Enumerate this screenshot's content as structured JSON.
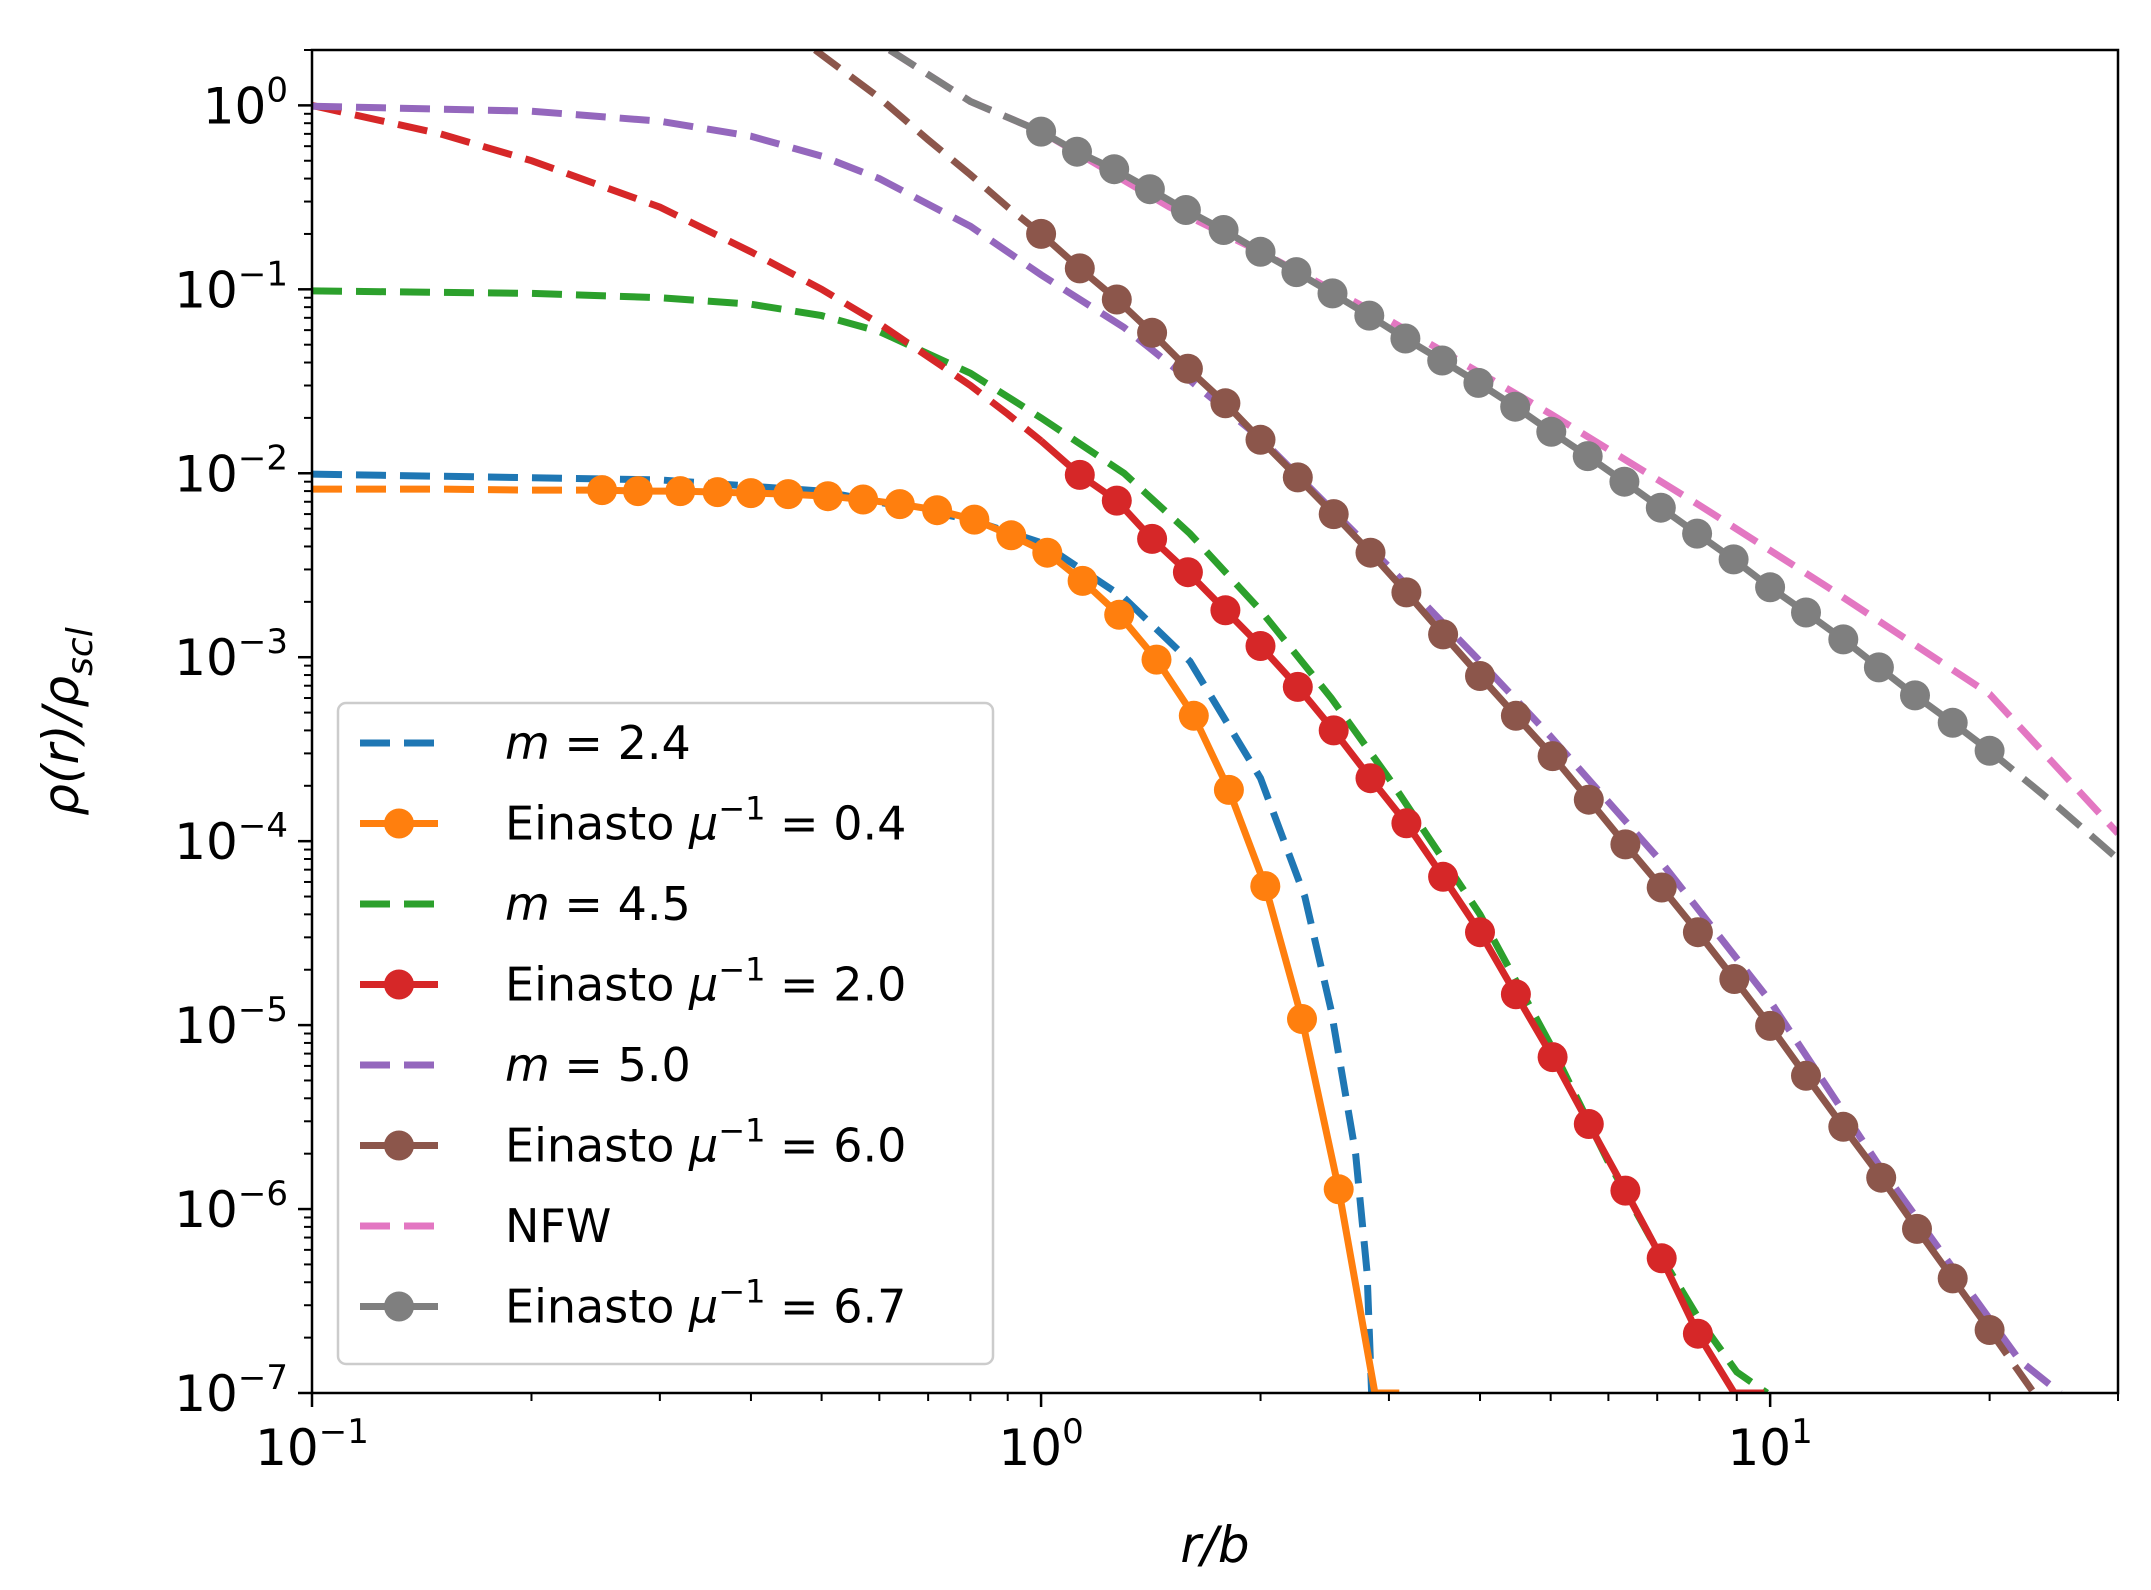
{
  "chart_data": {
    "type": "line",
    "title": "",
    "xlabel": "r/b",
    "ylabel": "ρ(r)/ρ_scl",
    "xscale": "log",
    "yscale": "log",
    "xlim": [
      0.1,
      30
    ],
    "ylim": [
      1e-07,
      2
    ],
    "x_ticks": [
      {
        "value": 0.1,
        "base": "10",
        "exp": "−1"
      },
      {
        "value": 1,
        "base": "10",
        "exp": "0"
      },
      {
        "value": 10,
        "base": "10",
        "exp": "1"
      }
    ],
    "y_ticks": [
      {
        "value": 1,
        "base": "10",
        "exp": "0"
      },
      {
        "value": 0.1,
        "base": "10",
        "exp": "−1"
      },
      {
        "value": 0.01,
        "base": "10",
        "exp": "−2"
      },
      {
        "value": 0.001,
        "base": "10",
        "exp": "−3"
      },
      {
        "value": 0.0001,
        "base": "10",
        "exp": "−4"
      },
      {
        "value": 1e-05,
        "base": "10",
        "exp": "−5"
      },
      {
        "value": 1e-06,
        "base": "10",
        "exp": "−6"
      },
      {
        "value": 1e-07,
        "base": "10",
        "exp": "−7"
      }
    ],
    "grid": false,
    "legend_position": "lower-left",
    "series": [
      {
        "name": "m = 2.4",
        "label_var": "m",
        "label_rest": " = 2.4",
        "color": "#1f77b4",
        "style": "dashed",
        "marker": false,
        "x": [
          0.1,
          0.3,
          0.5,
          0.8,
          1.0,
          1.3,
          1.6,
          2.0,
          2.3,
          2.5,
          2.7,
          2.8,
          2.84
        ],
        "y": [
          0.0099,
          0.0092,
          0.008,
          0.0056,
          0.0042,
          0.0021,
          0.00095,
          0.00022,
          5e-05,
          1.2e-05,
          2e-06,
          4.5e-07,
          1e-07
        ]
      },
      {
        "name": "Einasto μ⁻¹ = 0.4",
        "label_var": "Einasto ",
        "label_mu": true,
        "label_rest": " = 0.4",
        "color": "#ff7f0e",
        "style": "solid",
        "marker": true,
        "x": [
          0.1,
          0.15,
          0.2,
          0.25,
          0.28,
          0.32,
          0.36,
          0.4,
          0.45,
          0.51,
          0.57,
          0.64,
          0.72,
          0.81,
          0.91,
          1.02,
          1.14,
          1.28,
          1.44,
          1.62,
          1.81,
          2.03,
          2.28,
          2.56,
          2.87,
          3.1
        ],
        "y": [
          0.0082,
          0.0082,
          0.0081,
          0.0081,
          0.008,
          0.008,
          0.0079,
          0.0078,
          0.0077,
          0.0075,
          0.0072,
          0.0068,
          0.0063,
          0.0056,
          0.0046,
          0.0037,
          0.0026,
          0.0017,
          0.00097,
          0.00048,
          0.00019,
          5.7e-05,
          1.08e-05,
          1.28e-06,
          1e-07,
          1e-07
        ],
        "marker_from": 0.25,
        "marker_to": 2.87
      },
      {
        "name": "m = 4.5",
        "label_var": "m",
        "label_rest": " = 4.5",
        "color": "#2ca02c",
        "style": "dashed",
        "marker": false,
        "x": [
          0.1,
          0.2,
          0.3,
          0.4,
          0.5,
          0.6,
          0.8,
          1.0,
          1.3,
          1.6,
          2.0,
          2.5,
          3.0,
          4.0,
          5.0,
          6.0,
          7.0,
          8.0,
          9.0,
          9.9
        ],
        "y": [
          0.098,
          0.095,
          0.09,
          0.083,
          0.072,
          0.059,
          0.035,
          0.02,
          0.01,
          0.0047,
          0.0018,
          0.0006,
          0.00022,
          4e-05,
          7.8e-06,
          1.8e-06,
          6e-07,
          2.5e-07,
          1.3e-07,
          1e-07
        ]
      },
      {
        "name": "Einasto μ⁻¹ = 2.0",
        "label_var": "Einasto ",
        "label_mu": true,
        "label_rest": " = 2.0",
        "color": "#d62728",
        "style": "solid",
        "marker": true,
        "x": [
          0.1,
          0.15,
          0.2,
          0.3,
          0.4,
          0.5,
          0.6,
          0.7,
          0.8,
          0.9,
          1.0,
          1.13,
          1.27,
          1.42,
          1.59,
          1.79,
          2.0,
          2.25,
          2.52,
          2.83,
          3.17,
          3.56,
          4.0,
          4.48,
          5.03,
          5.64,
          6.33,
          7.1,
          7.96,
          8.93,
          9.95
        ],
        "y": [
          1.0,
          0.7,
          0.5,
          0.28,
          0.16,
          0.1,
          0.065,
          0.043,
          0.03,
          0.021,
          0.015,
          0.0098,
          0.0071,
          0.0044,
          0.0029,
          0.0018,
          0.00115,
          0.00069,
          0.0004,
          0.00022,
          0.000125,
          6.4e-05,
          3.2e-05,
          1.47e-05,
          6.7e-06,
          2.9e-06,
          1.26e-06,
          5.4e-07,
          2.1e-07,
          1e-07,
          1e-07
        ],
        "marker_from": 1.13,
        "marker_to": 8.93,
        "solid_from": 1.0
      },
      {
        "name": "m = 5.0",
        "label_var": "m",
        "label_rest": " = 5.0",
        "color": "#9467bd",
        "style": "dashed",
        "marker": false,
        "x": [
          0.1,
          0.2,
          0.3,
          0.4,
          0.5,
          0.6,
          0.8,
          1.0,
          1.3,
          1.6,
          2.0,
          3.0,
          4.0,
          5.0,
          7.0,
          10.0,
          14.0,
          18.0,
          22.0,
          25.0
        ],
        "y": [
          0.99,
          0.93,
          0.82,
          0.68,
          0.53,
          0.4,
          0.22,
          0.12,
          0.062,
          0.032,
          0.0155,
          0.0031,
          0.00095,
          0.00037,
          8.2e-05,
          1.35e-05,
          1.8e-06,
          4.5e-07,
          1.5e-07,
          1e-07
        ]
      },
      {
        "name": "Einasto μ⁻¹ = 6.0",
        "label_var": "Einasto ",
        "label_mu": true,
        "label_rest": " = 6.0",
        "color": "#8c564b",
        "style": "solid",
        "marker": true,
        "x": [
          0.49,
          0.6,
          0.7,
          0.8,
          0.9,
          1.0,
          1.13,
          1.27,
          1.42,
          1.59,
          1.79,
          2.0,
          2.25,
          2.52,
          2.83,
          3.17,
          3.56,
          4.0,
          4.48,
          5.03,
          5.64,
          6.33,
          7.1,
          7.96,
          8.93,
          10.0,
          11.2,
          12.6,
          14.2,
          15.9,
          17.8,
          20.0,
          23.0
        ],
        "y": [
          2.0,
          1.1,
          0.65,
          0.42,
          0.28,
          0.2,
          0.13,
          0.088,
          0.058,
          0.037,
          0.024,
          0.0152,
          0.0095,
          0.006,
          0.0037,
          0.00225,
          0.00133,
          0.00079,
          0.00048,
          0.00029,
          0.000168,
          9.6e-05,
          5.6e-05,
          3.2e-05,
          1.78e-05,
          9.9e-06,
          5.3e-06,
          2.8e-06,
          1.48e-06,
          7.8e-07,
          4.2e-07,
          2.2e-07,
          1e-07
        ],
        "marker_from": 1.0,
        "marker_to": 20.0,
        "dash_before": 1.0
      },
      {
        "name": "NFW",
        "label_var": "",
        "label_rest": "NFW",
        "color": "#e377c2",
        "style": "dashed",
        "marker": false,
        "x": [
          0.62,
          0.8,
          1.0,
          1.5,
          2.0,
          3.0,
          5.0,
          8.0,
          12.0,
          20.0,
          30.0
        ],
        "y": [
          2.0,
          1.05,
          0.72,
          0.28,
          0.16,
          0.068,
          0.021,
          0.0067,
          0.0024,
          0.00063,
          0.00011
        ]
      },
      {
        "name": "Einasto μ⁻¹ = 6.7",
        "label_var": "Einasto ",
        "label_mu": true,
        "label_rest": " = 6.7",
        "color": "#7f7f7f",
        "style": "solid",
        "marker": true,
        "x": [
          0.62,
          0.8,
          1.0,
          1.12,
          1.26,
          1.41,
          1.58,
          1.78,
          2.0,
          2.24,
          2.51,
          2.82,
          3.16,
          3.55,
          3.98,
          4.47,
          5.01,
          5.62,
          6.31,
          7.08,
          7.94,
          8.91,
          10.0,
          11.2,
          12.6,
          14.1,
          15.8,
          17.8,
          20.0,
          25.0,
          30.0
        ],
        "y": [
          2.0,
          1.05,
          0.72,
          0.56,
          0.45,
          0.35,
          0.27,
          0.21,
          0.16,
          0.124,
          0.095,
          0.072,
          0.054,
          0.041,
          0.031,
          0.023,
          0.0168,
          0.0124,
          0.009,
          0.0065,
          0.0047,
          0.0034,
          0.0024,
          0.00175,
          0.00125,
          0.00088,
          0.00062,
          0.00044,
          0.00031,
          0.00015,
          8e-05
        ],
        "marker_from": 1.0,
        "marker_to": 20.0,
        "dash_after": 20.0
      }
    ]
  }
}
